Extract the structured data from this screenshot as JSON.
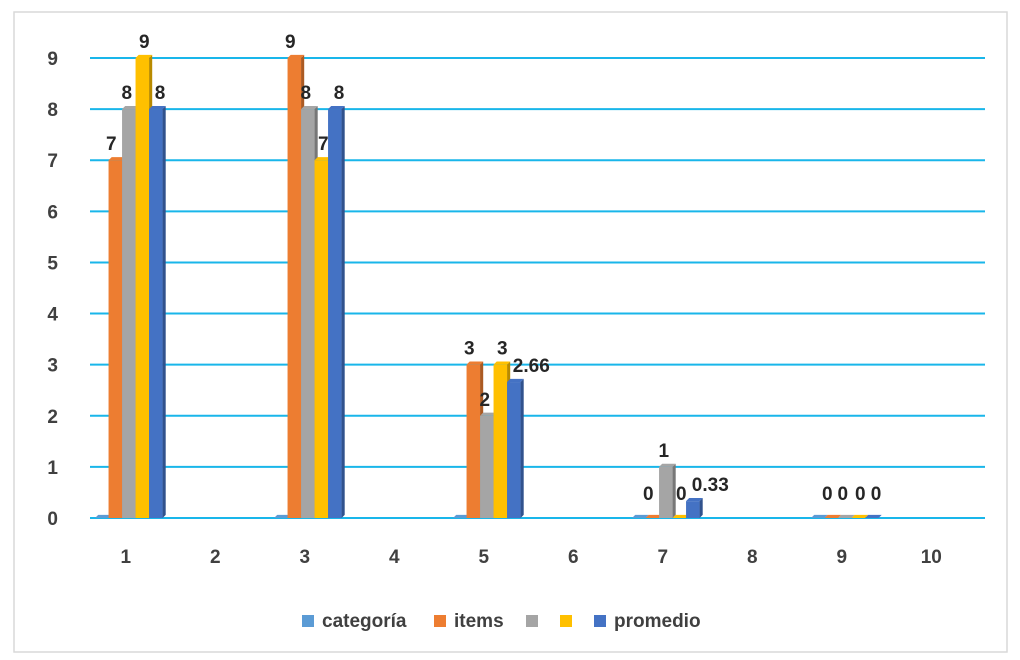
{
  "chart_data": {
    "type": "bar",
    "categories": [
      "1",
      "2",
      "3",
      "4",
      "5",
      "6",
      "7",
      "8",
      "9",
      "10"
    ],
    "series": [
      {
        "name": "categoría",
        "color": "#5b9bd5",
        "values": [
          0,
          null,
          0,
          null,
          0,
          null,
          0,
          null,
          0,
          null
        ],
        "labels": [
          "",
          "",
          "",
          "",
          "",
          "",
          "",
          "",
          "",
          ""
        ]
      },
      {
        "name": "items",
        "color": "#ed7d31",
        "values": [
          7,
          null,
          9,
          null,
          3,
          null,
          0,
          null,
          0,
          null
        ],
        "labels": [
          "7",
          "",
          "9",
          "",
          "3",
          "",
          "0",
          "",
          "0",
          ""
        ]
      },
      {
        "name": "",
        "color": "#a5a5a5",
        "values": [
          8,
          null,
          8,
          null,
          2,
          null,
          1,
          null,
          0,
          null
        ],
        "labels": [
          "8",
          "",
          "8",
          "",
          "2",
          "",
          "1",
          "",
          "0",
          ""
        ]
      },
      {
        "name": "",
        "color": "#ffc000",
        "values": [
          9,
          null,
          7,
          null,
          3,
          null,
          0,
          null,
          0,
          null
        ],
        "labels": [
          "9",
          "",
          "7",
          "",
          "3",
          "",
          "0",
          "",
          "0",
          ""
        ]
      },
      {
        "name": "promedio",
        "color": "#4472c4",
        "values": [
          8,
          null,
          8,
          null,
          2.66,
          null,
          0.33,
          null,
          0,
          null
        ],
        "labels": [
          "8",
          "",
          "8",
          "",
          "2.66",
          "",
          "0.33",
          "",
          "0",
          ""
        ]
      }
    ],
    "yticks": [
      "0",
      "1",
      "2",
      "3",
      "4",
      "5",
      "6",
      "7",
      "8",
      "9"
    ],
    "ylim": [
      0,
      9
    ],
    "gridlines": true,
    "grid_color": "#19b6ea",
    "legend_position": "bottom"
  }
}
